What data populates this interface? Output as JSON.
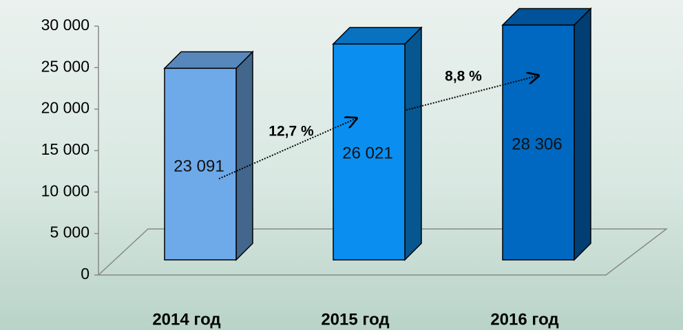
{
  "chart_data": {
    "type": "bar3d",
    "categories": [
      "2014 год",
      "2015 год",
      "2016 год"
    ],
    "values": [
      23091,
      26021,
      28306
    ],
    "value_labels": [
      "23 091",
      "26 021",
      "28 306"
    ],
    "colors": [
      "#6eaaea",
      "#0a8ff0",
      "#0068c0"
    ],
    "ylim": [
      0,
      30000
    ],
    "yticks": [
      0,
      {
        "value": 5000,
        "label": "5 000"
      },
      {
        "value": 10000,
        "label": "10 000"
      },
      {
        "value": 15000,
        "label": "15 000"
      },
      {
        "value": 20000,
        "label": "20 000"
      },
      {
        "value": 25000,
        "label": "25 000"
      },
      {
        "value": 30000,
        "label": "30 000"
      }
    ],
    "annotations": [
      "12,7 %",
      "8,8 %"
    ]
  }
}
